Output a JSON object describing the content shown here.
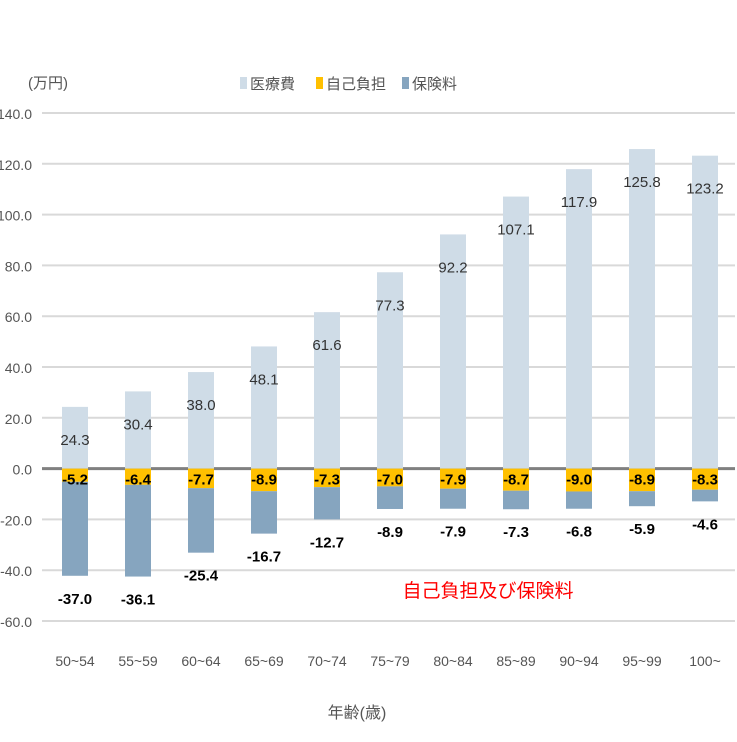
{
  "chart_data": {
    "type": "bar",
    "stacked": true,
    "unit_label": "(万円)",
    "xlabel": "年齢(歳)",
    "ylabel": "",
    "ylim": [
      -60,
      140
    ],
    "yticks": [
      "140.0",
      "120.0",
      "100.0",
      "80.0",
      "60.0",
      "40.0",
      "20.0",
      "0.0",
      "-20.0",
      "-40.0",
      "-60.0"
    ],
    "grid": true,
    "legend_position": "top",
    "annotation": "自己負担及び保険料",
    "categories": [
      "50~54",
      "55~59",
      "60~64",
      "65~69",
      "70~74",
      "75~79",
      "80~84",
      "85~89",
      "90~94",
      "95~99",
      "100~"
    ],
    "series": [
      {
        "name": "医療費",
        "color": "#cfdce7",
        "values": [
          24.3,
          30.4,
          38.0,
          48.1,
          61.6,
          77.3,
          92.2,
          107.1,
          117.9,
          125.8,
          123.2
        ]
      },
      {
        "name": "自己負担",
        "color": "#ffc000",
        "values": [
          -5.2,
          -6.4,
          -7.7,
          -8.9,
          -7.3,
          -7.0,
          -7.9,
          -8.7,
          -9.0,
          -8.9,
          -8.3
        ]
      },
      {
        "name": "保険料",
        "color": "#86a5bf",
        "values": [
          -37.0,
          -36.1,
          -25.4,
          -16.7,
          -12.7,
          -8.9,
          -7.9,
          -7.3,
          -6.8,
          -5.9,
          -4.6
        ]
      }
    ]
  }
}
